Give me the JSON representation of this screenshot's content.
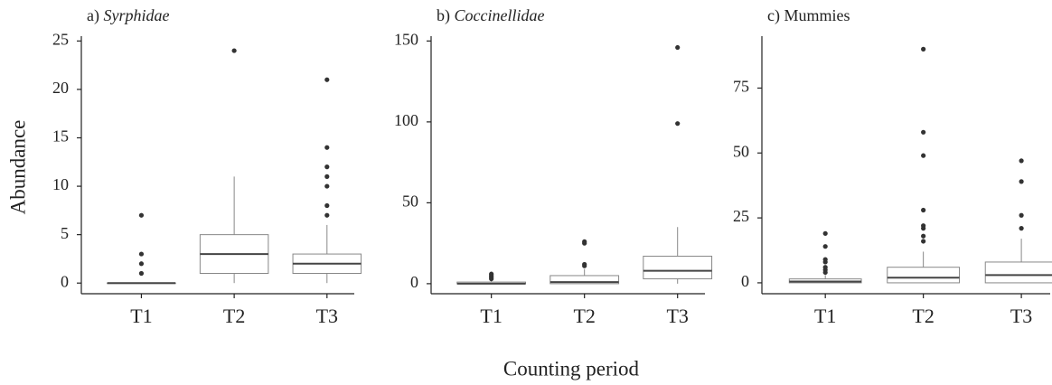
{
  "chart_data": [
    {
      "type": "box",
      "panel": "a)",
      "title": "Syrphidae",
      "title_italic": true,
      "ylabel": "Abundance",
      "categories": [
        "T1",
        "T2",
        "T3"
      ],
      "boxes": [
        {
          "min": 0,
          "q1": 0,
          "median": 0,
          "q3": 0,
          "max": 0,
          "outliers": [
            1,
            2,
            3,
            7
          ]
        },
        {
          "min": 0,
          "q1": 1,
          "median": 3,
          "q3": 5,
          "max": 11,
          "outliers": [
            24
          ]
        },
        {
          "min": 0,
          "q1": 1,
          "median": 2,
          "q3": 3,
          "max": 6,
          "outliers": [
            7,
            8,
            10,
            11,
            12,
            14,
            21
          ]
        }
      ],
      "ylim": [
        -1.1,
        25.5
      ],
      "yticks": [
        0,
        5,
        10,
        15,
        20,
        25
      ]
    },
    {
      "type": "box",
      "panel": "b)",
      "title": "Coccinellidae",
      "title_italic": true,
      "xlabel": "Counting period",
      "categories": [
        "T1",
        "T2",
        "T3"
      ],
      "boxes": [
        {
          "min": 0,
          "q1": 0,
          "median": 0,
          "q3": 1,
          "max": 2,
          "outliers": [
            3,
            4,
            5,
            6
          ]
        },
        {
          "min": 0,
          "q1": 0,
          "median": 1,
          "q3": 5,
          "max": 9,
          "outliers": [
            11,
            12,
            25,
            26
          ]
        },
        {
          "min": 0,
          "q1": 3,
          "median": 8,
          "q3": 17,
          "max": 35,
          "outliers": [
            99,
            146
          ]
        }
      ],
      "ylim": [
        -6.2,
        153
      ],
      "yticks": [
        0,
        50,
        100,
        150
      ]
    },
    {
      "type": "box",
      "panel": "c)",
      "title": "Mummies",
      "title_italic": false,
      "categories": [
        "T1",
        "T2",
        "T3"
      ],
      "boxes": [
        {
          "min": 0,
          "q1": 0,
          "median": 0.5,
          "q3": 1.5,
          "max": 3,
          "outliers": [
            4,
            5,
            6,
            8,
            9,
            14,
            19
          ]
        },
        {
          "min": 0,
          "q1": 0,
          "median": 2,
          "q3": 6,
          "max": 12,
          "outliers": [
            16,
            18,
            21,
            22,
            28,
            49,
            58,
            90
          ]
        },
        {
          "min": 0,
          "q1": 0,
          "median": 3,
          "q3": 8,
          "max": 17,
          "outliers": [
            21,
            26,
            39,
            47
          ]
        }
      ],
      "ylim": [
        -4.2,
        95
      ],
      "yticks": [
        0,
        25,
        50,
        75
      ]
    }
  ]
}
